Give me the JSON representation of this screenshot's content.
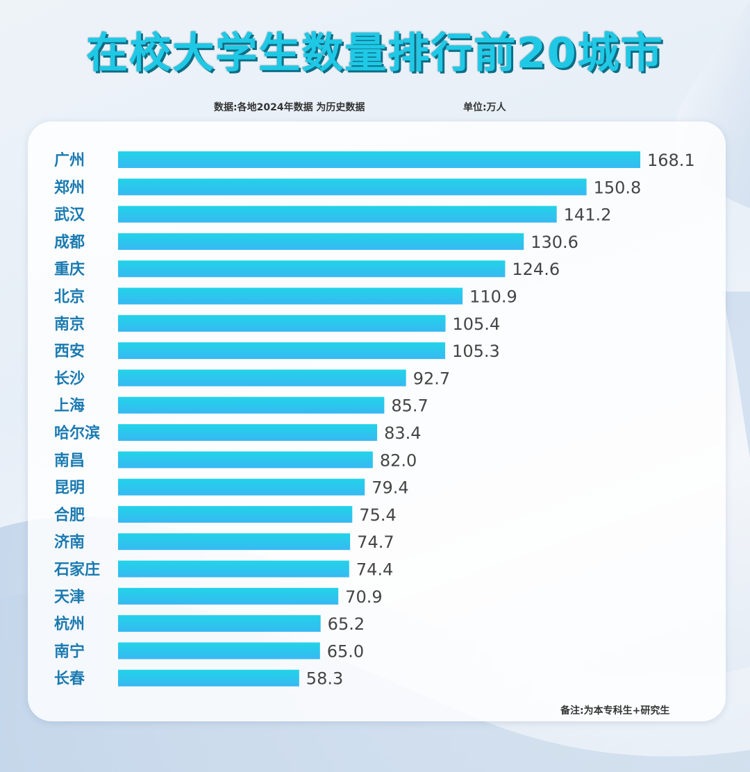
{
  "header": {
    "title": "在校大学生数量排行前20城市",
    "source_note": "数据:各地2024年数据  为历史数据",
    "unit_note": "单位:万人"
  },
  "footer": {
    "remark": "备注:为本专科生+研究生"
  },
  "colors": {
    "bar_top": "#22d3e8",
    "bar_bottom": "#36b9f2",
    "title": "#1fc9e6",
    "label": "#1a7ab0"
  },
  "chart_data": {
    "type": "bar",
    "orientation": "horizontal",
    "title": "在校大学生数量排行前20城市",
    "unit": "万人",
    "categories": [
      "广州",
      "郑州",
      "武汉",
      "成都",
      "重庆",
      "北京",
      "南京",
      "西安",
      "长沙",
      "上海",
      "哈尔滨",
      "南昌",
      "昆明",
      "合肥",
      "济南",
      "石家庄",
      "天津",
      "杭州",
      "南宁",
      "长春"
    ],
    "values": [
      168.1,
      150.8,
      141.2,
      130.6,
      124.6,
      110.9,
      105.4,
      105.3,
      92.7,
      85.7,
      83.4,
      82.0,
      79.4,
      75.4,
      74.7,
      74.4,
      70.9,
      65.2,
      65.0,
      58.3
    ],
    "value_labels": [
      "168.1",
      "150.8",
      "141.2",
      "130.6",
      "124.6",
      "110.9",
      "105.4",
      "105.3",
      "92.7",
      "85.7",
      "83.4",
      "82.0",
      "79.4",
      "75.4",
      "74.7",
      "74.4",
      "70.9",
      "65.2",
      "65.0",
      "58.3"
    ],
    "xlim": [
      0,
      168.1
    ],
    "grid": false,
    "legend": "none"
  }
}
